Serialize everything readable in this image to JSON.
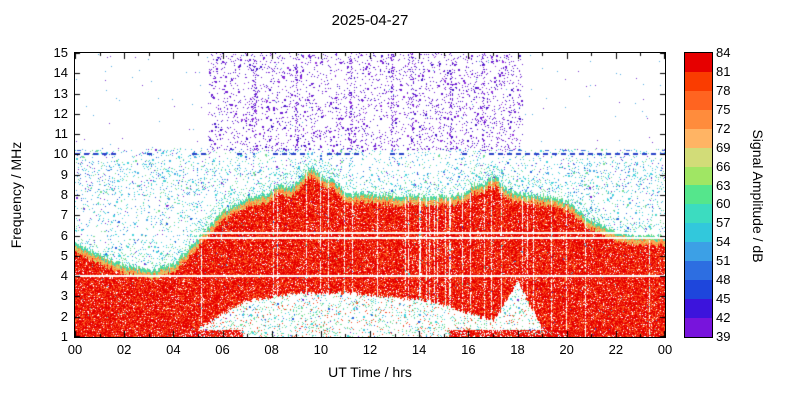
{
  "chart_data": {
    "type": "heatmap",
    "title": "2025-04-27",
    "xlabel": "UT Time / hrs",
    "ylabel": "Frequency / MHz",
    "cblabel": "Signal Amplitude / dB",
    "xlim": [
      0,
      24
    ],
    "ylim": [
      1,
      15
    ],
    "x_tick_hours": [
      0,
      2,
      4,
      6,
      8,
      10,
      12,
      14,
      16,
      18,
      20,
      22,
      24
    ],
    "x_tick_labels": [
      "00",
      "02",
      "04",
      "06",
      "08",
      "10",
      "12",
      "14",
      "16",
      "18",
      "20",
      "22",
      "00"
    ],
    "y_tick_values": [
      1,
      2,
      3,
      4,
      5,
      6,
      7,
      8,
      9,
      10,
      11,
      12,
      13,
      14,
      15
    ],
    "colorbar": {
      "tick_values": [
        84,
        81,
        78,
        75,
        72,
        69,
        66,
        63,
        60,
        57,
        54,
        51,
        48,
        45,
        42,
        39
      ],
      "segment_colors": [
        "#e60000",
        "#fa3c00",
        "#ff6420",
        "#ff8c3c",
        "#ffb464",
        "#d2dc78",
        "#a0e664",
        "#55e68c",
        "#3cdcc0",
        "#32c8dc",
        "#3ca0e6",
        "#2d6ee1",
        "#1e46dc",
        "#3c14dc",
        "#7814dc"
      ]
    },
    "envelope": {
      "hours": [
        0,
        1,
        2,
        3,
        4,
        5,
        6,
        7,
        8,
        9,
        10,
        11,
        12,
        13,
        14,
        15,
        16,
        17,
        18,
        19,
        20,
        21,
        22,
        23,
        24
      ],
      "fof2_top_mhz": [
        5.6,
        5.1,
        4.6,
        4.3,
        4.6,
        5.9,
        7.2,
        7.9,
        8.1,
        8.2,
        8.2,
        8.1,
        8.1,
        8.0,
        8.0,
        8.0,
        8.1,
        8.2,
        8.1,
        8.0,
        7.7,
        6.8,
        6.2,
        6.0,
        6.0
      ],
      "solid_bottom_mhz": [
        1,
        1,
        1,
        1,
        1,
        1.4,
        2.2,
        2.8,
        3.0,
        3.2,
        3.2,
        3.2,
        3.1,
        3.0,
        2.9,
        2.6,
        2.2,
        1.8,
        3.8,
        1.4,
        1.2,
        1,
        1,
        1,
        1
      ]
    },
    "bumps": [
      {
        "t": 9.6,
        "width": 0.6,
        "amp": 1.15
      },
      {
        "t": 10.5,
        "width": 0.35,
        "amp": 0.5
      },
      {
        "t": 8.3,
        "width": 0.3,
        "amp": 0.45
      },
      {
        "t": 17.0,
        "width": 0.45,
        "amp": 0.75
      },
      {
        "t": 16.2,
        "width": 0.3,
        "amp": 0.4
      }
    ],
    "white_lines_mhz": [
      4.0,
      5.9,
      6.15
    ],
    "dashed_line_mhz": 10.0,
    "purple_noise_box": {
      "t_range": [
        5.4,
        18.2
      ],
      "f_range": [
        10.2,
        15.0
      ]
    },
    "purple_columns_t": [
      7.3,
      9.0,
      11.2,
      12.9,
      13.7,
      15.3,
      16.6
    ]
  }
}
